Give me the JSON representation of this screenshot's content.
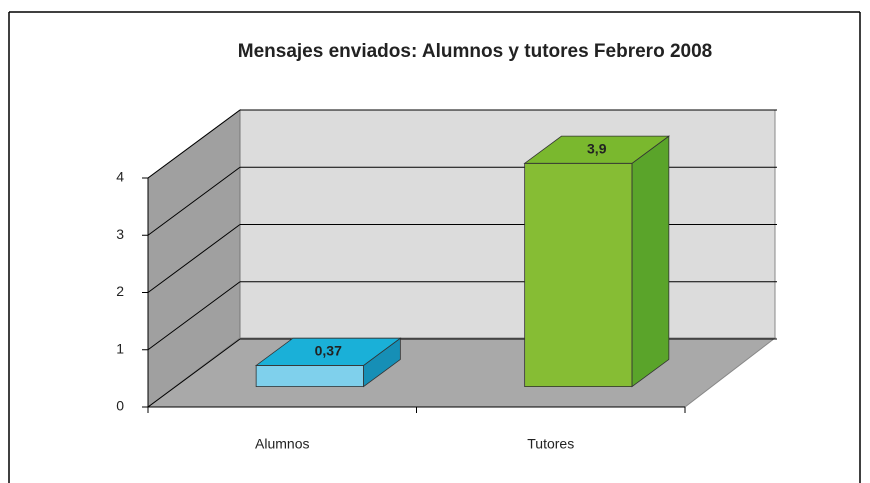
{
  "chart_data": {
    "type": "bar3d",
    "title": "Mensajes enviados: Alumnos y tutores Febrero 2008",
    "categories": [
      "Alumnos",
      "Tutores"
    ],
    "values": [
      0.37,
      3.9
    ],
    "value_labels": [
      "0,37",
      "3,9"
    ],
    "colors": [
      "#7fd0ec",
      "#86bd34"
    ],
    "top_colors": [
      "#1ab0d8",
      "#7ab82e"
    ],
    "side_colors": [
      "#168fb6",
      "#5aa42a"
    ],
    "ylim": [
      0,
      4
    ],
    "yticks": [
      0,
      1,
      2,
      3,
      4
    ],
    "grid": true
  }
}
